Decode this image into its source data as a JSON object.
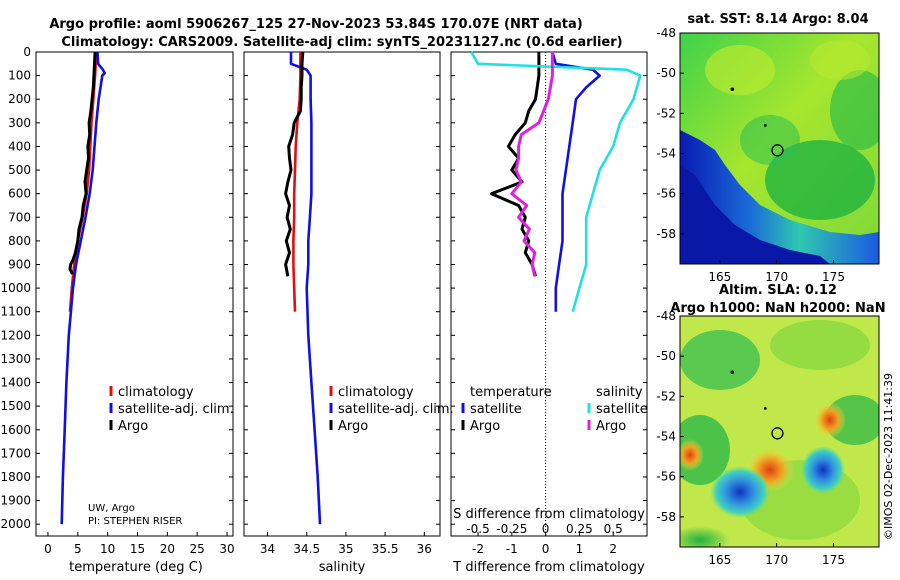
{
  "header": {
    "title_line1": "Argo profile: aoml 5906267_125 27-Nov-2023 53.84S 170.07E (NRT data)",
    "title_line2": "Climatology: CARS2009. Satellite-adj clim: synTS_20231127.nc (0.6d earlier)"
  },
  "colors": {
    "climatology": "#e01010",
    "satellite": "#1010e0",
    "argo": "#000000",
    "sat_salinity": "#20e0e0",
    "argo_salinity": "#e020e0"
  },
  "pressure_ticks": [
    "0",
    "100",
    "200",
    "300",
    "400",
    "500",
    "600",
    "700",
    "800",
    "900",
    "1000",
    "1100",
    "1200",
    "1300",
    "1400",
    "1500",
    "1600",
    "1700",
    "1800",
    "1900",
    "2000"
  ],
  "chart_data": [
    {
      "type": "line",
      "panel": "temperature",
      "xlabel": "temperature (deg C)",
      "xlim": [
        -2,
        31
      ],
      "ylim": [
        0,
        2050
      ],
      "xticks": [
        "0",
        "5",
        "10",
        "15",
        "20",
        "25",
        "30"
      ],
      "note_line1": "UW, Argo",
      "note_line2": "PI: STEPHEN RISER",
      "legend": [
        "climatology",
        "satellite-adj. clim.",
        "Argo"
      ],
      "series": [
        {
          "name": "climatology",
          "y": [
            0,
            50,
            100,
            200,
            300,
            400,
            500,
            600,
            700,
            800,
            900,
            1000,
            1100
          ],
          "x": [
            8.1,
            8.0,
            7.9,
            7.6,
            7.3,
            7.1,
            6.9,
            6.5,
            5.8,
            5.0,
            4.4,
            4.0,
            3.7
          ]
        },
        {
          "name": "satellite-adj. clim.",
          "y": [
            0,
            50,
            75,
            90,
            100,
            150,
            200,
            300,
            400,
            500,
            600,
            700,
            800,
            900,
            1000,
            1200,
            1400,
            1600,
            1800,
            2000
          ],
          "x": [
            8.3,
            8.4,
            9.2,
            9.5,
            9.1,
            8.8,
            8.5,
            8.1,
            7.8,
            7.5,
            7.0,
            6.3,
            5.5,
            4.7,
            4.2,
            3.5,
            3.1,
            2.8,
            2.5,
            2.3
          ]
        },
        {
          "name": "Argo",
          "y": [
            0,
            50,
            100,
            150,
            200,
            250,
            300,
            350,
            400,
            450,
            500,
            550,
            600,
            650,
            700,
            750,
            800,
            850,
            880,
            900,
            920,
            940
          ],
          "x": [
            7.9,
            7.8,
            7.7,
            7.6,
            7.4,
            7.2,
            6.9,
            7.0,
            6.7,
            6.8,
            6.5,
            6.2,
            6.4,
            5.9,
            5.7,
            5.2,
            5.0,
            4.6,
            4.2,
            3.8,
            3.7,
            4.1
          ]
        }
      ]
    },
    {
      "type": "line",
      "panel": "salinity",
      "xlabel": "salinity",
      "xlim": [
        33.7,
        36.2
      ],
      "ylim": [
        0,
        2050
      ],
      "xticks": [
        "34",
        "34.5",
        "35",
        "35.5",
        "36"
      ],
      "legend": [
        "climatology",
        "satellite-adj. clim.",
        "Argo"
      ],
      "series": [
        {
          "name": "climatology",
          "y": [
            0,
            100,
            200,
            300,
            400,
            500,
            600,
            700,
            800,
            900,
            1000,
            1100
          ],
          "x": [
            34.42,
            34.42,
            34.41,
            34.38,
            34.36,
            34.35,
            34.34,
            34.34,
            34.33,
            34.33,
            34.34,
            34.35
          ]
        },
        {
          "name": "satellite-adj. clim.",
          "y": [
            0,
            50,
            75,
            100,
            200,
            300,
            400,
            500,
            600,
            700,
            800,
            900,
            1000,
            1200,
            1400,
            1600,
            1800,
            2000
          ],
          "x": [
            34.3,
            34.3,
            34.5,
            34.55,
            34.55,
            34.56,
            34.56,
            34.56,
            34.56,
            34.54,
            34.52,
            34.52,
            34.5,
            34.52,
            34.56,
            34.6,
            34.64,
            34.67
          ]
        },
        {
          "name": "Argo",
          "y": [
            0,
            50,
            100,
            150,
            200,
            250,
            300,
            350,
            400,
            450,
            500,
            550,
            600,
            650,
            700,
            750,
            800,
            850,
            900,
            950
          ],
          "x": [
            34.45,
            34.44,
            34.44,
            34.43,
            34.43,
            34.42,
            34.34,
            34.32,
            34.27,
            34.28,
            34.3,
            34.26,
            34.23,
            34.28,
            34.25,
            34.29,
            34.24,
            34.28,
            34.23,
            34.26
          ]
        }
      ]
    },
    {
      "type": "line",
      "panel": "difference",
      "xlabel": "T difference from climatology",
      "xlabel_top": "S difference from climatology",
      "xlim": [
        -2.8,
        3.0
      ],
      "ylim": [
        0,
        2050
      ],
      "xticks": [
        "-2",
        "-1",
        "0",
        "1",
        "2"
      ],
      "sticks": [
        "-0.5",
        "-0.25",
        "0",
        "0.25",
        "0.5"
      ],
      "legend_t_title": "temperature",
      "legend_s_title": "salinity",
      "legend_t": [
        "satellite",
        "Argo"
      ],
      "legend_s": [
        "satellite",
        "Argo"
      ],
      "series": [
        {
          "name": "temperature satellite",
          "y": [
            0,
            50,
            75,
            100,
            150,
            200,
            300,
            400,
            500,
            600,
            700,
            800,
            900,
            1000,
            1100
          ],
          "x": [
            0.2,
            0.3,
            1.4,
            1.6,
            1.2,
            0.9,
            0.8,
            0.7,
            0.6,
            0.5,
            0.5,
            0.5,
            0.4,
            0.3,
            0.3
          ]
        },
        {
          "name": "temperature Argo",
          "y": [
            0,
            100,
            200,
            250,
            300,
            350,
            400,
            450,
            500,
            550,
            600,
            650,
            700,
            750,
            800,
            850,
            900,
            950
          ],
          "x": [
            -0.2,
            -0.2,
            -0.3,
            -0.5,
            -0.6,
            -0.9,
            -1.1,
            -0.8,
            -1.0,
            -0.7,
            -1.6,
            -0.8,
            -0.6,
            -0.7,
            -0.5,
            -0.6,
            -0.4,
            -0.3
          ]
        },
        {
          "name": "salinity satellite",
          "y": [
            0,
            50,
            75,
            100,
            200,
            300,
            400,
            500,
            600,
            700,
            800,
            900,
            1000,
            1100
          ],
          "x": [
            -0.55,
            -0.5,
            0.6,
            0.7,
            0.65,
            0.55,
            0.5,
            0.4,
            0.35,
            0.3,
            0.3,
            0.3,
            0.25,
            0.2
          ]
        },
        {
          "name": "salinity Argo",
          "y": [
            0,
            100,
            200,
            300,
            350,
            400,
            450,
            500,
            550,
            600,
            650,
            700,
            750,
            800,
            850,
            900,
            950
          ],
          "x": [
            0.05,
            0.05,
            0.02,
            -0.05,
            -0.18,
            -0.2,
            -0.2,
            -0.22,
            -0.18,
            -0.25,
            -0.14,
            -0.2,
            -0.12,
            -0.16,
            -0.08,
            -0.1,
            -0.08
          ]
        }
      ]
    },
    {
      "type": "heatmap",
      "panel": "sst_map",
      "title": "sat. SST: 8.14 Argo: 8.04",
      "xlim": [
        161.5,
        179
      ],
      "ylim": [
        -59.5,
        -48
      ],
      "xticks": [
        "165",
        "170",
        "175"
      ],
      "yticks": [
        "-48",
        "-50",
        "-52",
        "-54",
        "-56",
        "-58"
      ],
      "argo_position": {
        "lon": 170.07,
        "lat": -53.84
      }
    },
    {
      "type": "heatmap",
      "panel": "sla_map",
      "title_line1": "Altim. SLA: 0.12",
      "title_line2": "Argo h1000: NaN h2000: NaN",
      "xlim": [
        161.5,
        179
      ],
      "ylim": [
        -59.5,
        -48
      ],
      "xticks": [
        "165",
        "170",
        "175"
      ],
      "yticks": [
        "-48",
        "-50",
        "-52",
        "-54",
        "-56",
        "-58"
      ],
      "argo_position": {
        "lon": 170.07,
        "lat": -53.84
      }
    }
  ],
  "footer": {
    "stamp": "©IMOS 02-Dec-2023 11:41:39"
  }
}
